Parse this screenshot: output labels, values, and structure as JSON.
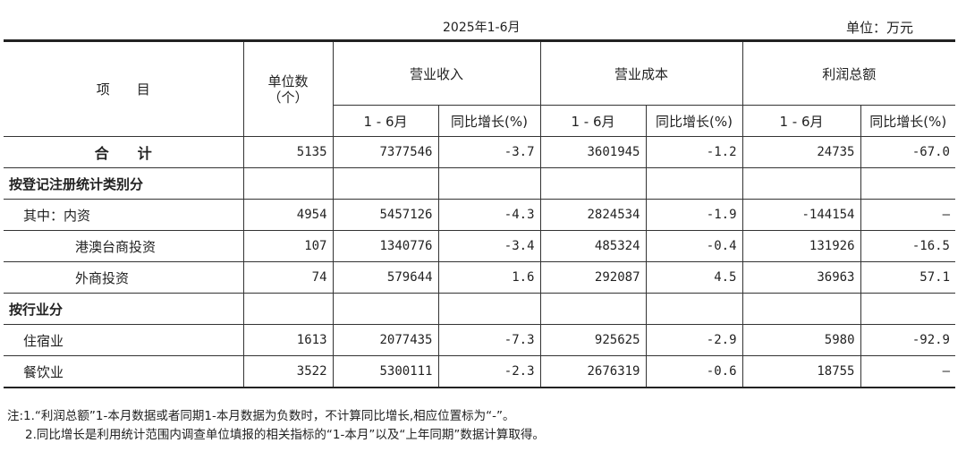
{
  "header": {
    "period": "2025年1-6月",
    "unit": "单位：万元"
  },
  "columns": {
    "item": "项　　目",
    "units": "单位数\n（个）",
    "groups": [
      "营业收入",
      "营业成本",
      "利润总额"
    ],
    "sub_period": "1 - 6月",
    "sub_growth": "同比增长(%)"
  },
  "rows": [
    {
      "label": "合　　计",
      "cells": [
        "5135",
        "7377546",
        "-3.7",
        "3601945",
        "-1.2",
        "24735",
        "-67.0"
      ]
    },
    {
      "label": "按登记注册统计类别分",
      "cells": [
        "",
        "",
        "",
        "",
        "",
        "",
        ""
      ]
    },
    {
      "label": "其中：内资",
      "cells": [
        "4954",
        "5457126",
        "-4.3",
        "2824534",
        "-1.9",
        "-144154",
        "—"
      ]
    },
    {
      "label": "港澳台商投资",
      "cells": [
        "107",
        "1340776",
        "-3.4",
        "485324",
        "-0.4",
        "131926",
        "-16.5"
      ]
    },
    {
      "label": "外商投资",
      "cells": [
        "74",
        "579644",
        "1.6",
        "292087",
        "4.5",
        "36963",
        "57.1"
      ]
    },
    {
      "label": "按行业分",
      "cells": [
        "",
        "",
        "",
        "",
        "",
        "",
        ""
      ]
    },
    {
      "label": "住宿业",
      "cells": [
        "1613",
        "2077435",
        "-7.3",
        "925625",
        "-2.9",
        "5980",
        "-92.9"
      ]
    },
    {
      "label": "餐饮业",
      "cells": [
        "3522",
        "5300111",
        "-2.3",
        "2676319",
        "-0.6",
        "18755",
        "—"
      ]
    }
  ],
  "notes": [
    "注:1.“利润总额”1-本月数据或者同期1-本月数据为负数时，不计算同比增长,相应位置标为“-”。",
    "2.同比增长是利用统计范围内调查单位填报的相关指标的“1-本月”以及“上年同期”数据计算取得。"
  ]
}
